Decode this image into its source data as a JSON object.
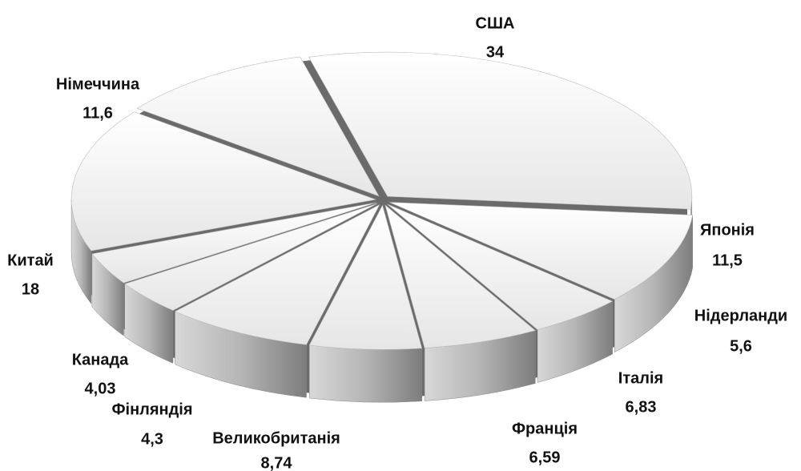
{
  "chart_data": {
    "type": "pie",
    "categories": [
      "США",
      "Японія",
      "Нідерланди",
      "Італія",
      "Франція",
      "Великобританія",
      "Фінляндія",
      "Канада",
      "Китай",
      "Німеччина"
    ],
    "values": [
      34,
      11.5,
      5.6,
      6.83,
      6.59,
      8.74,
      4.3,
      4.03,
      18,
      11.6
    ],
    "value_labels": [
      "34",
      "11,5",
      "5,6",
      "6,83",
      "6,59",
      "8,74",
      "4,3",
      "4,03",
      "18",
      "11,6"
    ],
    "color": "#e6e6e6"
  }
}
